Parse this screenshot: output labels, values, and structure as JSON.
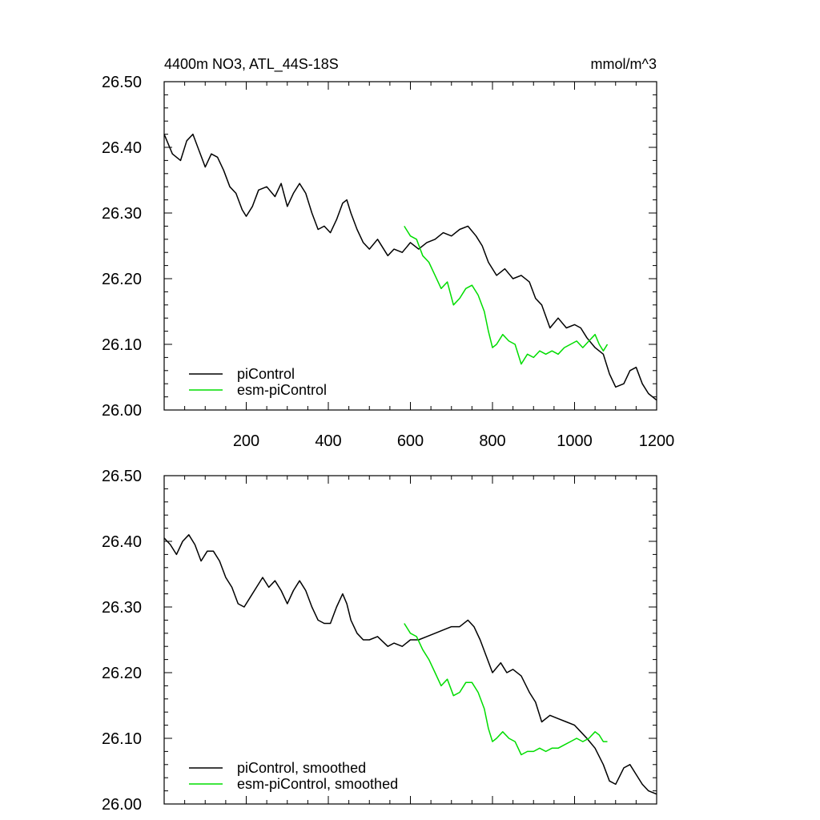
{
  "header": {
    "title": "4400m NO3, ATL_44S-18S",
    "units": "mmol/m^3"
  },
  "colors": {
    "piControl": "#000000",
    "esm_piControl": "#00dd00",
    "axis": "#000000"
  },
  "chart_data": [
    {
      "type": "line",
      "panel": "raw",
      "xlim": [
        0,
        1200
      ],
      "ylim": [
        26.0,
        26.5
      ],
      "x_ticks": [
        200,
        400,
        600,
        800,
        1000,
        1200
      ],
      "x_tick_labels": [
        "200",
        "400",
        "600",
        "800",
        "1000",
        "1200"
      ],
      "y_ticks": [
        26.0,
        26.1,
        26.2,
        26.3,
        26.4,
        26.5
      ],
      "y_tick_labels": [
        "26.00",
        "26.10",
        "26.20",
        "26.30",
        "26.40",
        "26.50"
      ],
      "grid": false,
      "legend_position": "bottom-left",
      "legend": [
        "piControl",
        "esm-piControl"
      ],
      "series": [
        {
          "name": "piControl",
          "color": "#000000",
          "x": [
            0,
            20,
            40,
            55,
            70,
            85,
            100,
            115,
            130,
            145,
            160,
            175,
            190,
            200,
            215,
            230,
            250,
            270,
            285,
            300,
            315,
            330,
            345,
            360,
            375,
            390,
            405,
            420,
            435,
            445,
            455,
            470,
            485,
            500,
            520,
            545,
            560,
            580,
            600,
            620,
            640,
            660,
            680,
            700,
            720,
            740,
            760,
            775,
            790,
            810,
            830,
            850,
            870,
            890,
            905,
            920,
            940,
            960,
            980,
            1000,
            1015,
            1030,
            1050,
            1070,
            1085,
            1100,
            1120,
            1135,
            1150,
            1165,
            1180,
            1200
          ],
          "y": [
            26.42,
            26.39,
            26.38,
            26.41,
            26.42,
            26.395,
            26.37,
            26.39,
            26.385,
            26.365,
            26.34,
            26.33,
            26.305,
            26.295,
            26.31,
            26.335,
            26.34,
            26.325,
            26.345,
            26.31,
            26.33,
            26.345,
            26.33,
            26.3,
            26.275,
            26.28,
            26.27,
            26.29,
            26.315,
            26.32,
            26.3,
            26.275,
            26.255,
            26.245,
            26.26,
            26.235,
            26.245,
            26.24,
            26.255,
            26.245,
            26.255,
            26.26,
            26.27,
            26.265,
            26.275,
            26.28,
            26.265,
            26.25,
            26.225,
            26.205,
            26.215,
            26.2,
            26.205,
            26.195,
            26.17,
            26.16,
            26.125,
            26.14,
            26.125,
            26.13,
            26.125,
            26.11,
            26.095,
            26.085,
            26.055,
            26.035,
            26.04,
            26.06,
            26.065,
            26.04,
            26.025,
            26.015
          ]
        },
        {
          "name": "esm-piControl",
          "color": "#00dd00",
          "x": [
            585,
            600,
            615,
            630,
            645,
            660,
            675,
            690,
            705,
            720,
            735,
            750,
            765,
            780,
            790,
            800,
            810,
            825,
            840,
            855,
            870,
            885,
            900,
            915,
            930,
            945,
            960,
            975,
            990,
            1005,
            1020,
            1035,
            1050,
            1060,
            1070,
            1080
          ],
          "y": [
            26.28,
            26.265,
            26.26,
            26.235,
            26.225,
            26.205,
            26.185,
            26.195,
            26.16,
            26.17,
            26.185,
            26.19,
            26.175,
            26.15,
            26.12,
            26.095,
            26.1,
            26.115,
            26.105,
            26.1,
            26.07,
            26.085,
            26.08,
            26.09,
            26.085,
            26.09,
            26.085,
            26.095,
            26.1,
            26.105,
            26.095,
            26.105,
            26.115,
            26.1,
            26.09,
            26.1
          ]
        }
      ]
    },
    {
      "type": "line",
      "panel": "smoothed",
      "xlim": [
        0,
        1200
      ],
      "ylim": [
        26.0,
        26.5
      ],
      "x_ticks": [
        200,
        400,
        600,
        800,
        1000,
        1200
      ],
      "y_ticks": [
        26.0,
        26.1,
        26.2,
        26.3,
        26.4,
        26.5
      ],
      "y_tick_labels": [
        "26.00",
        "26.10",
        "26.20",
        "26.30",
        "26.40",
        "26.50"
      ],
      "grid": false,
      "legend_position": "bottom-left",
      "legend": [
        "piControl, smoothed",
        "esm-piControl, smoothed"
      ],
      "series": [
        {
          "name": "piControl, smoothed",
          "color": "#000000",
          "x": [
            0,
            15,
            30,
            45,
            60,
            75,
            90,
            105,
            120,
            135,
            150,
            165,
            180,
            195,
            210,
            225,
            240,
            255,
            270,
            285,
            300,
            315,
            330,
            345,
            360,
            375,
            390,
            405,
            420,
            435,
            445,
            455,
            470,
            485,
            500,
            520,
            545,
            560,
            580,
            600,
            620,
            640,
            660,
            680,
            700,
            720,
            740,
            755,
            770,
            785,
            800,
            820,
            835,
            850,
            870,
            890,
            905,
            920,
            940,
            960,
            980,
            1000,
            1015,
            1030,
            1050,
            1070,
            1085,
            1100,
            1120,
            1135,
            1150,
            1165,
            1180,
            1200
          ],
          "y": [
            26.405,
            26.395,
            26.38,
            26.4,
            26.41,
            26.395,
            26.37,
            26.385,
            26.385,
            26.37,
            26.345,
            26.33,
            26.305,
            26.3,
            26.315,
            26.33,
            26.345,
            26.33,
            26.34,
            26.325,
            26.305,
            26.325,
            26.34,
            26.325,
            26.3,
            26.28,
            26.275,
            26.275,
            26.3,
            26.32,
            26.305,
            26.28,
            26.26,
            26.25,
            26.25,
            26.255,
            26.24,
            26.245,
            26.24,
            26.25,
            26.25,
            26.255,
            26.26,
            26.265,
            26.27,
            26.27,
            26.28,
            26.27,
            26.25,
            26.225,
            26.2,
            26.215,
            26.2,
            26.205,
            26.195,
            26.17,
            26.155,
            26.125,
            26.135,
            26.13,
            26.125,
            26.12,
            26.11,
            26.1,
            26.085,
            26.06,
            26.035,
            26.03,
            26.055,
            26.06,
            26.045,
            26.03,
            26.02,
            26.015
          ]
        },
        {
          "name": "esm-piControl, smoothed",
          "color": "#00dd00",
          "x": [
            585,
            600,
            615,
            630,
            645,
            660,
            675,
            690,
            705,
            720,
            735,
            750,
            765,
            780,
            790,
            800,
            810,
            825,
            840,
            855,
            870,
            885,
            900,
            915,
            930,
            945,
            960,
            975,
            990,
            1005,
            1020,
            1035,
            1050,
            1060,
            1070,
            1080
          ],
          "y": [
            26.275,
            26.26,
            26.255,
            26.235,
            26.22,
            26.2,
            26.18,
            26.19,
            26.165,
            26.17,
            26.185,
            26.185,
            26.17,
            26.145,
            26.115,
            26.095,
            26.1,
            26.11,
            26.1,
            26.095,
            26.075,
            26.08,
            26.08,
            26.085,
            26.08,
            26.085,
            26.085,
            26.09,
            26.095,
            26.1,
            26.095,
            26.1,
            26.11,
            26.105,
            26.095,
            26.095
          ]
        }
      ]
    }
  ]
}
